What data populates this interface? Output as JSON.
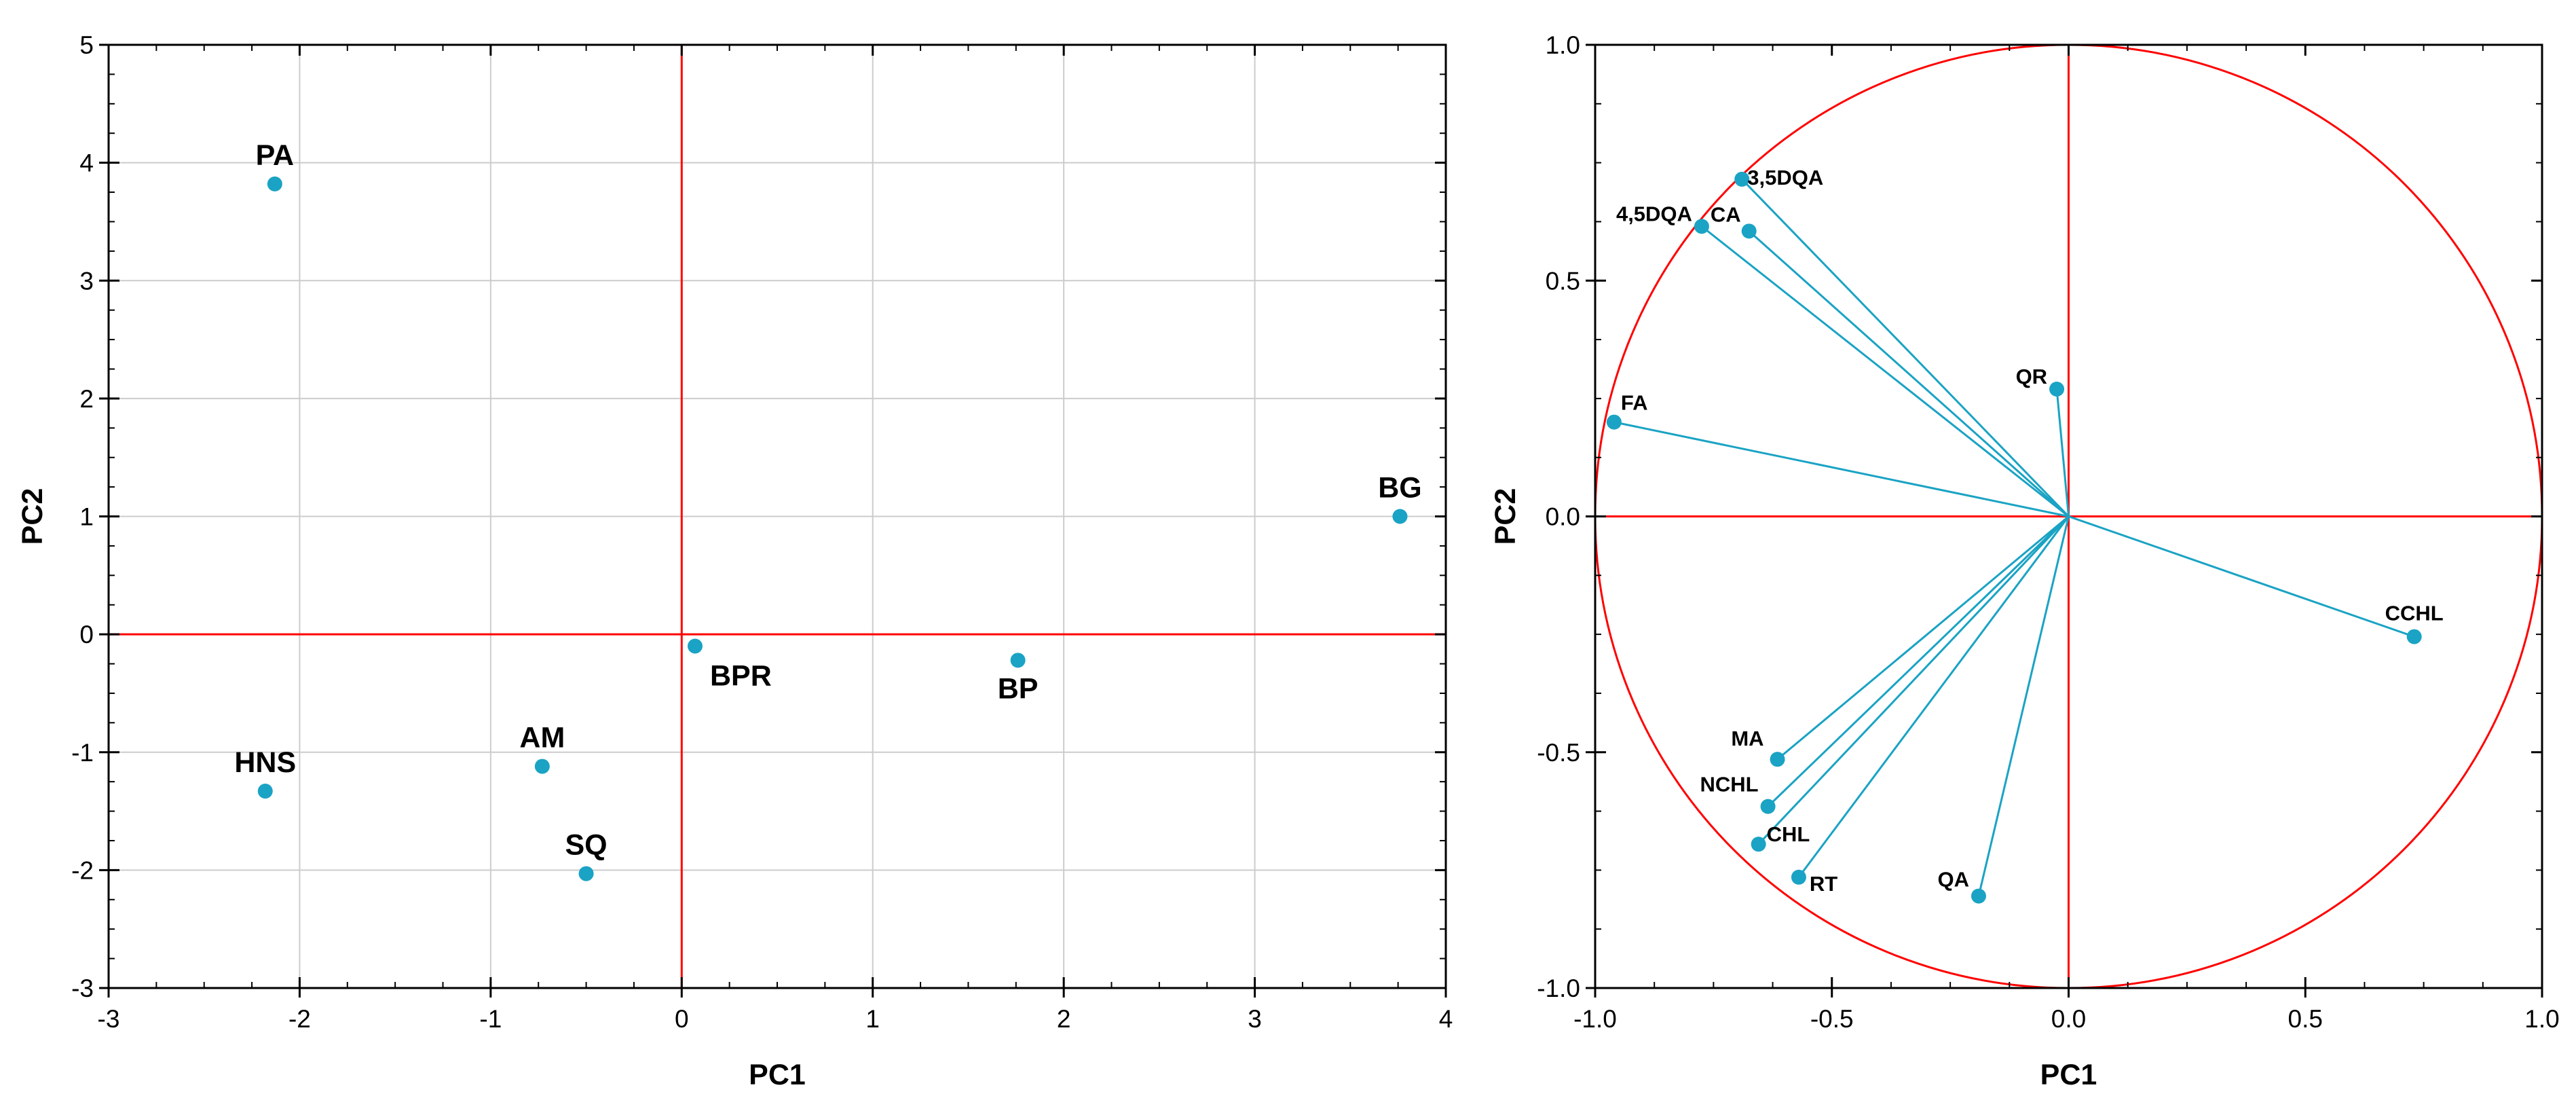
{
  "colors": {
    "point": "#1aa3c4",
    "reference": "#ff0000",
    "grid": "#cccccc",
    "frame": "#000000"
  },
  "chart_data": [
    {
      "type": "scatter",
      "title": "",
      "xlabel": "PC1",
      "ylabel": "PC2",
      "xlim": [
        -3,
        4
      ],
      "ylim": [
        -3,
        5
      ],
      "xticks": [
        -3,
        -2,
        -1,
        0,
        1,
        2,
        3,
        4
      ],
      "yticks": [
        -3,
        -2,
        -1,
        0,
        1,
        2,
        3,
        4,
        5
      ],
      "xtick_labels": [
        "-3",
        "-2",
        "-1",
        "0",
        "1",
        "2",
        "3",
        "4"
      ],
      "ytick_labels": [
        "-3",
        "-2",
        "-1",
        "0",
        "1",
        "2",
        "3",
        "4",
        "5"
      ],
      "grid": true,
      "reference_lines": {
        "x": 0,
        "y": 0
      },
      "points": [
        {
          "label": "PA",
          "x": -2.13,
          "y": 3.82
        },
        {
          "label": "BG",
          "x": 3.76,
          "y": 1.0
        },
        {
          "label": "BPR",
          "x": 0.07,
          "y": -0.1
        },
        {
          "label": "BP",
          "x": 1.76,
          "y": -0.22
        },
        {
          "label": "AM",
          "x": -0.73,
          "y": -1.12
        },
        {
          "label": "HNS",
          "x": -2.18,
          "y": -1.33
        },
        {
          "label": "SQ",
          "x": -0.5,
          "y": -2.03
        }
      ]
    },
    {
      "type": "scatter",
      "subtype": "correlation-circle",
      "title": "",
      "xlabel": "PC1",
      "ylabel": "PC2",
      "xlim": [
        -1.0,
        1.0
      ],
      "ylim": [
        -1.0,
        1.0
      ],
      "xticks": [
        -1.0,
        -0.5,
        0.0,
        0.5,
        1.0
      ],
      "yticks": [
        -1.0,
        -0.5,
        0.0,
        0.5,
        1.0
      ],
      "xtick_labels": [
        "-1.0",
        "-0.5",
        "0.0",
        "0.5",
        "1.0"
      ],
      "ytick_labels": [
        "-1.0",
        "-0.5",
        "0.0",
        "0.5",
        "1.0"
      ],
      "grid": false,
      "unit_circle": true,
      "reference_lines": {
        "x": 0,
        "y": 0
      },
      "vectors": [
        {
          "label": "3,5DQA",
          "x": -0.69,
          "y": 0.715
        },
        {
          "label": "4,5DQA",
          "x": -0.775,
          "y": 0.615
        },
        {
          "label": "CA",
          "x": -0.675,
          "y": 0.605
        },
        {
          "label": "QR",
          "x": -0.025,
          "y": 0.27
        },
        {
          "label": "FA",
          "x": -0.96,
          "y": 0.2
        },
        {
          "label": "CCHL",
          "x": 0.73,
          "y": -0.255
        },
        {
          "label": "MA",
          "x": -0.615,
          "y": -0.515
        },
        {
          "label": "NCHL",
          "x": -0.635,
          "y": -0.615
        },
        {
          "label": "CHL",
          "x": -0.655,
          "y": -0.695
        },
        {
          "label": "RT",
          "x": -0.57,
          "y": -0.765
        },
        {
          "label": "QA",
          "x": -0.19,
          "y": -0.805
        }
      ]
    }
  ]
}
